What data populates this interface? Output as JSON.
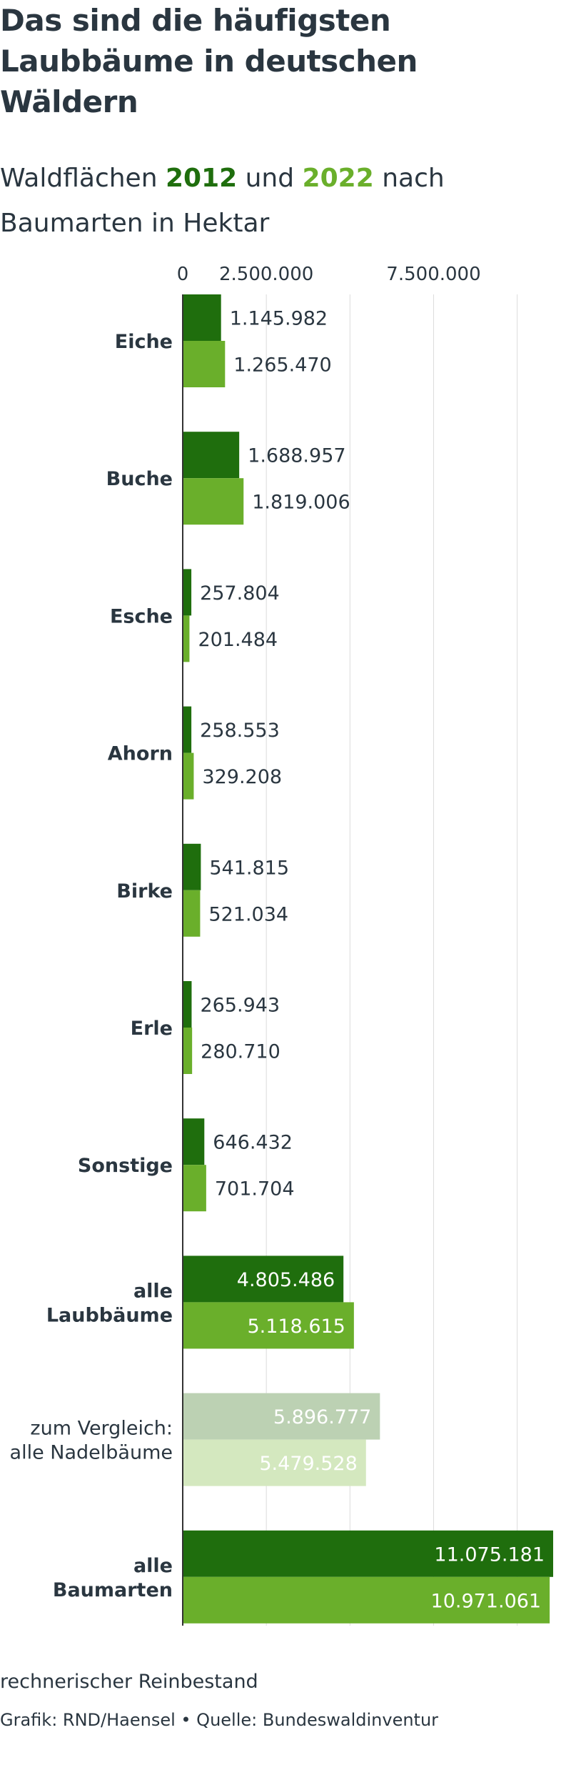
{
  "title": "Das sind die häufigsten Laubbäume in deutschen Wäldern",
  "subtitle": {
    "part1": "Waldflächen ",
    "year1": "2012",
    "part2": " und ",
    "year2": "2022",
    "part3": " nach Baumarten in Hektar"
  },
  "colors": {
    "dark_green": "#1f6e0d",
    "light_green": "#6aaf2b",
    "faded_dark": "#bcd1b3",
    "faded_light": "#d4e8bf",
    "grid": "#dcdcdc",
    "text": "#2a3640"
  },
  "chart_data": {
    "type": "bar",
    "orientation": "horizontal",
    "x_ticks": [
      "0",
      "2.500.000",
      "7.500.000"
    ],
    "xlim": [
      0,
      11075181
    ],
    "grid": true,
    "categories": [
      "Eiche",
      "Buche",
      "Esche",
      "Ahorn",
      "Birke",
      "Erle",
      "Sonstige",
      "alle Laubbäume",
      "zum Vergleich: alle Nadelbäume",
      "alle Baumarten"
    ],
    "series": [
      {
        "name": "2012",
        "color": "#1f6e0d",
        "values": [
          1145982,
          1688957,
          257804,
          258553,
          541815,
          265943,
          646432,
          4805486,
          5896777,
          11075181
        ],
        "labels": [
          "1.145.982",
          "1.688.957",
          "257.804",
          "258.553",
          "541.815",
          "265.943",
          "646.432",
          "4.805.486",
          "5.896.777",
          "11.075.181"
        ]
      },
      {
        "name": "2022",
        "color": "#6aaf2b",
        "values": [
          1265470,
          1819006,
          201484,
          329208,
          521034,
          280710,
          701704,
          5118615,
          5479528,
          10971061
        ],
        "labels": [
          "1.265.470",
          "1.819.006",
          "201.484",
          "329.208",
          "521.034",
          "280.710",
          "701.704",
          "5.118.615",
          "5.479.528",
          "10.971.061"
        ]
      }
    ]
  },
  "footer": {
    "note": "rechnerischer Reinbestand",
    "source": "Grafik: RND/Haensel • Quelle: Bundeswaldinventur"
  }
}
